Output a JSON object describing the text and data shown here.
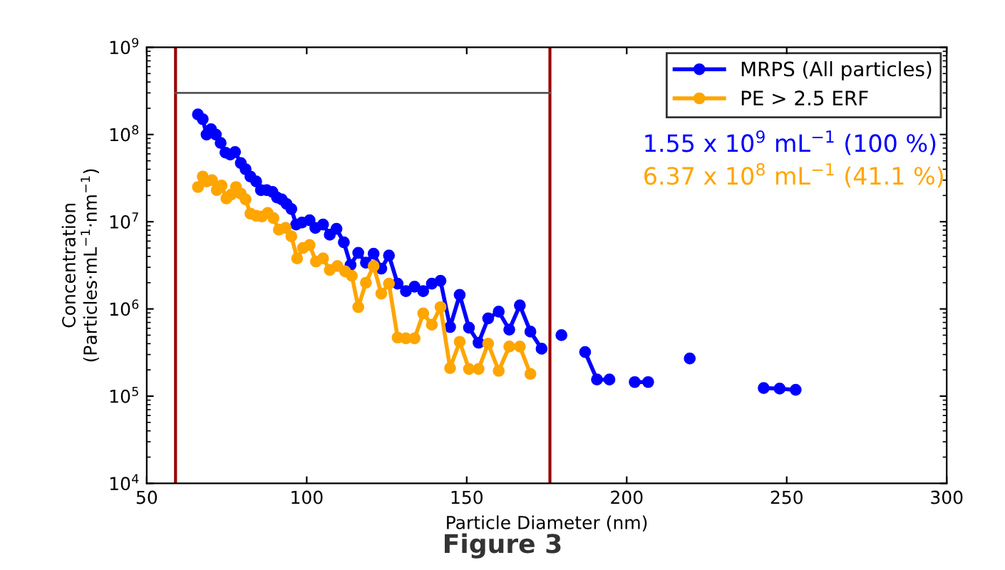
{
  "chart_data": {
    "type": "line",
    "xlabel": "Particle Diameter (nm)",
    "ylabel": "Concentration\n(Particles·mL$^{−1}$·nm$^{−1}$)",
    "log": "y",
    "xlim": [
      50,
      300
    ],
    "xticks": [
      50,
      100,
      150,
      200,
      250,
      300
    ],
    "ylim": [
      10000,
      1000000000
    ],
    "yticks": [
      {
        "value": 10000,
        "label": "10$^{4}$"
      },
      {
        "value": 100000,
        "label": "10$^{5}$"
      },
      {
        "value": 1000000,
        "label": "10$^{6}$"
      },
      {
        "value": 10000000,
        "label": "10$^{7}$"
      },
      {
        "value": 100000000,
        "label": "10$^{8}$"
      },
      {
        "value": 1000000000,
        "label": "10$^{9}$"
      }
    ],
    "grid": false,
    "legend": "top right",
    "marker": "circle",
    "line_style": "solid",
    "series": [
      {
        "name": "MRPS (All particles)",
        "color": "#0000ff",
        "x": [
          66.0,
          67.5,
          68.7,
          70.1,
          71.6,
          73.1,
          74.6,
          76.1,
          77.6,
          79.4,
          80.9,
          82.4,
          84.2,
          85.7,
          87.5,
          89.3,
          90.7,
          92.2,
          93.7,
          95.2,
          96.7,
          98.5,
          100.9,
          102.7,
          105.1,
          107.2,
          109.3,
          111.6,
          113.7,
          116.1,
          118.5,
          120.9,
          123.3,
          125.7,
          128.4,
          131.0,
          133.7,
          136.4,
          139.1,
          141.8,
          144.8,
          147.8,
          150.7,
          153.7,
          156.7,
          160.0,
          163.3,
          166.6,
          169.9,
          173.4,
          176,
          179.6,
          183,
          187.0,
          190.7,
          194.6,
          198,
          202.5,
          206.7,
          213,
          219.7,
          230,
          242.8,
          247.8,
          252.8
        ],
        "values": [
          170000000,
          150000000,
          100000000,
          115000000,
          100000000,
          80000000,
          62000000,
          59000000,
          63000000,
          47000000,
          40000000,
          33000000,
          29000000,
          23000000,
          23000000,
          22000000,
          19000000,
          18000000,
          16000000,
          14000000,
          9300000,
          9800000,
          10400000,
          8500000,
          9300000,
          7100000,
          8300000,
          5800000,
          3200000,
          4400000,
          3400000,
          4300000,
          2900000,
          4100000,
          1950000,
          1600000,
          1800000,
          1600000,
          1950000,
          2100000,
          620000,
          1450000,
          610000,
          410000,
          780000,
          930000,
          580000,
          1100000,
          550000,
          350000,
          null,
          500000,
          null,
          320000,
          155000,
          155000,
          null,
          145000,
          145000,
          null,
          270000,
          null,
          124000,
          122000,
          118000
        ]
      },
      {
        "name": "PE > 2.5 ERF",
        "color": "#ffa500",
        "x": [
          66.0,
          67.5,
          68.7,
          70.4,
          71.9,
          73.4,
          74.9,
          76.4,
          77.9,
          79.4,
          80.9,
          82.4,
          84.2,
          86.0,
          87.8,
          89.6,
          91.3,
          93.4,
          95.2,
          97.0,
          98.8,
          100.9,
          102.9,
          105.1,
          107.2,
          109.6,
          112.0,
          114.1,
          116.1,
          118.5,
          120.9,
          123.3,
          125.7,
          128.4,
          131.0,
          133.7,
          136.4,
          139.1,
          141.8,
          144.8,
          147.8,
          150.7,
          153.7,
          156.7,
          160.0,
          163.3,
          166.6,
          169.9
        ],
        "values": [
          25000000,
          33000000,
          29000000,
          30000000,
          23000000,
          26000000,
          18500000,
          20500000,
          25000000,
          21000000,
          18000000,
          12400000,
          11700000,
          11500000,
          12600000,
          11000000,
          8100000,
          8500000,
          6800000,
          3800000,
          5000000,
          5400000,
          3500000,
          3800000,
          2800000,
          3100000,
          2700000,
          2400000,
          1050000,
          2000000,
          3100000,
          1500000,
          1950000,
          470000,
          460000,
          460000,
          890000,
          660000,
          1050000,
          210000,
          420000,
          205000,
          205000,
          400000,
          195000,
          370000,
          370000,
          180000
        ]
      },
      {
        "type": "line",
        "color": "#555555",
        "marker": "none",
        "x": [
          59,
          176
        ],
        "values": [
          300000000,
          300000000
        ]
      }
    ],
    "ref_lines": [
      {
        "axis": "x",
        "value": 59,
        "color": "#990000"
      },
      {
        "axis": "x",
        "value": 176,
        "color": "#990000"
      }
    ],
    "annotations": [
      "1.55 x 10$^{9}$ mL$^{−1}$ (100 %)",
      "6.37 x 10$^{8}$ mL$^{−1}$ (41.1 %)",
      "Figure 3"
    ]
  }
}
